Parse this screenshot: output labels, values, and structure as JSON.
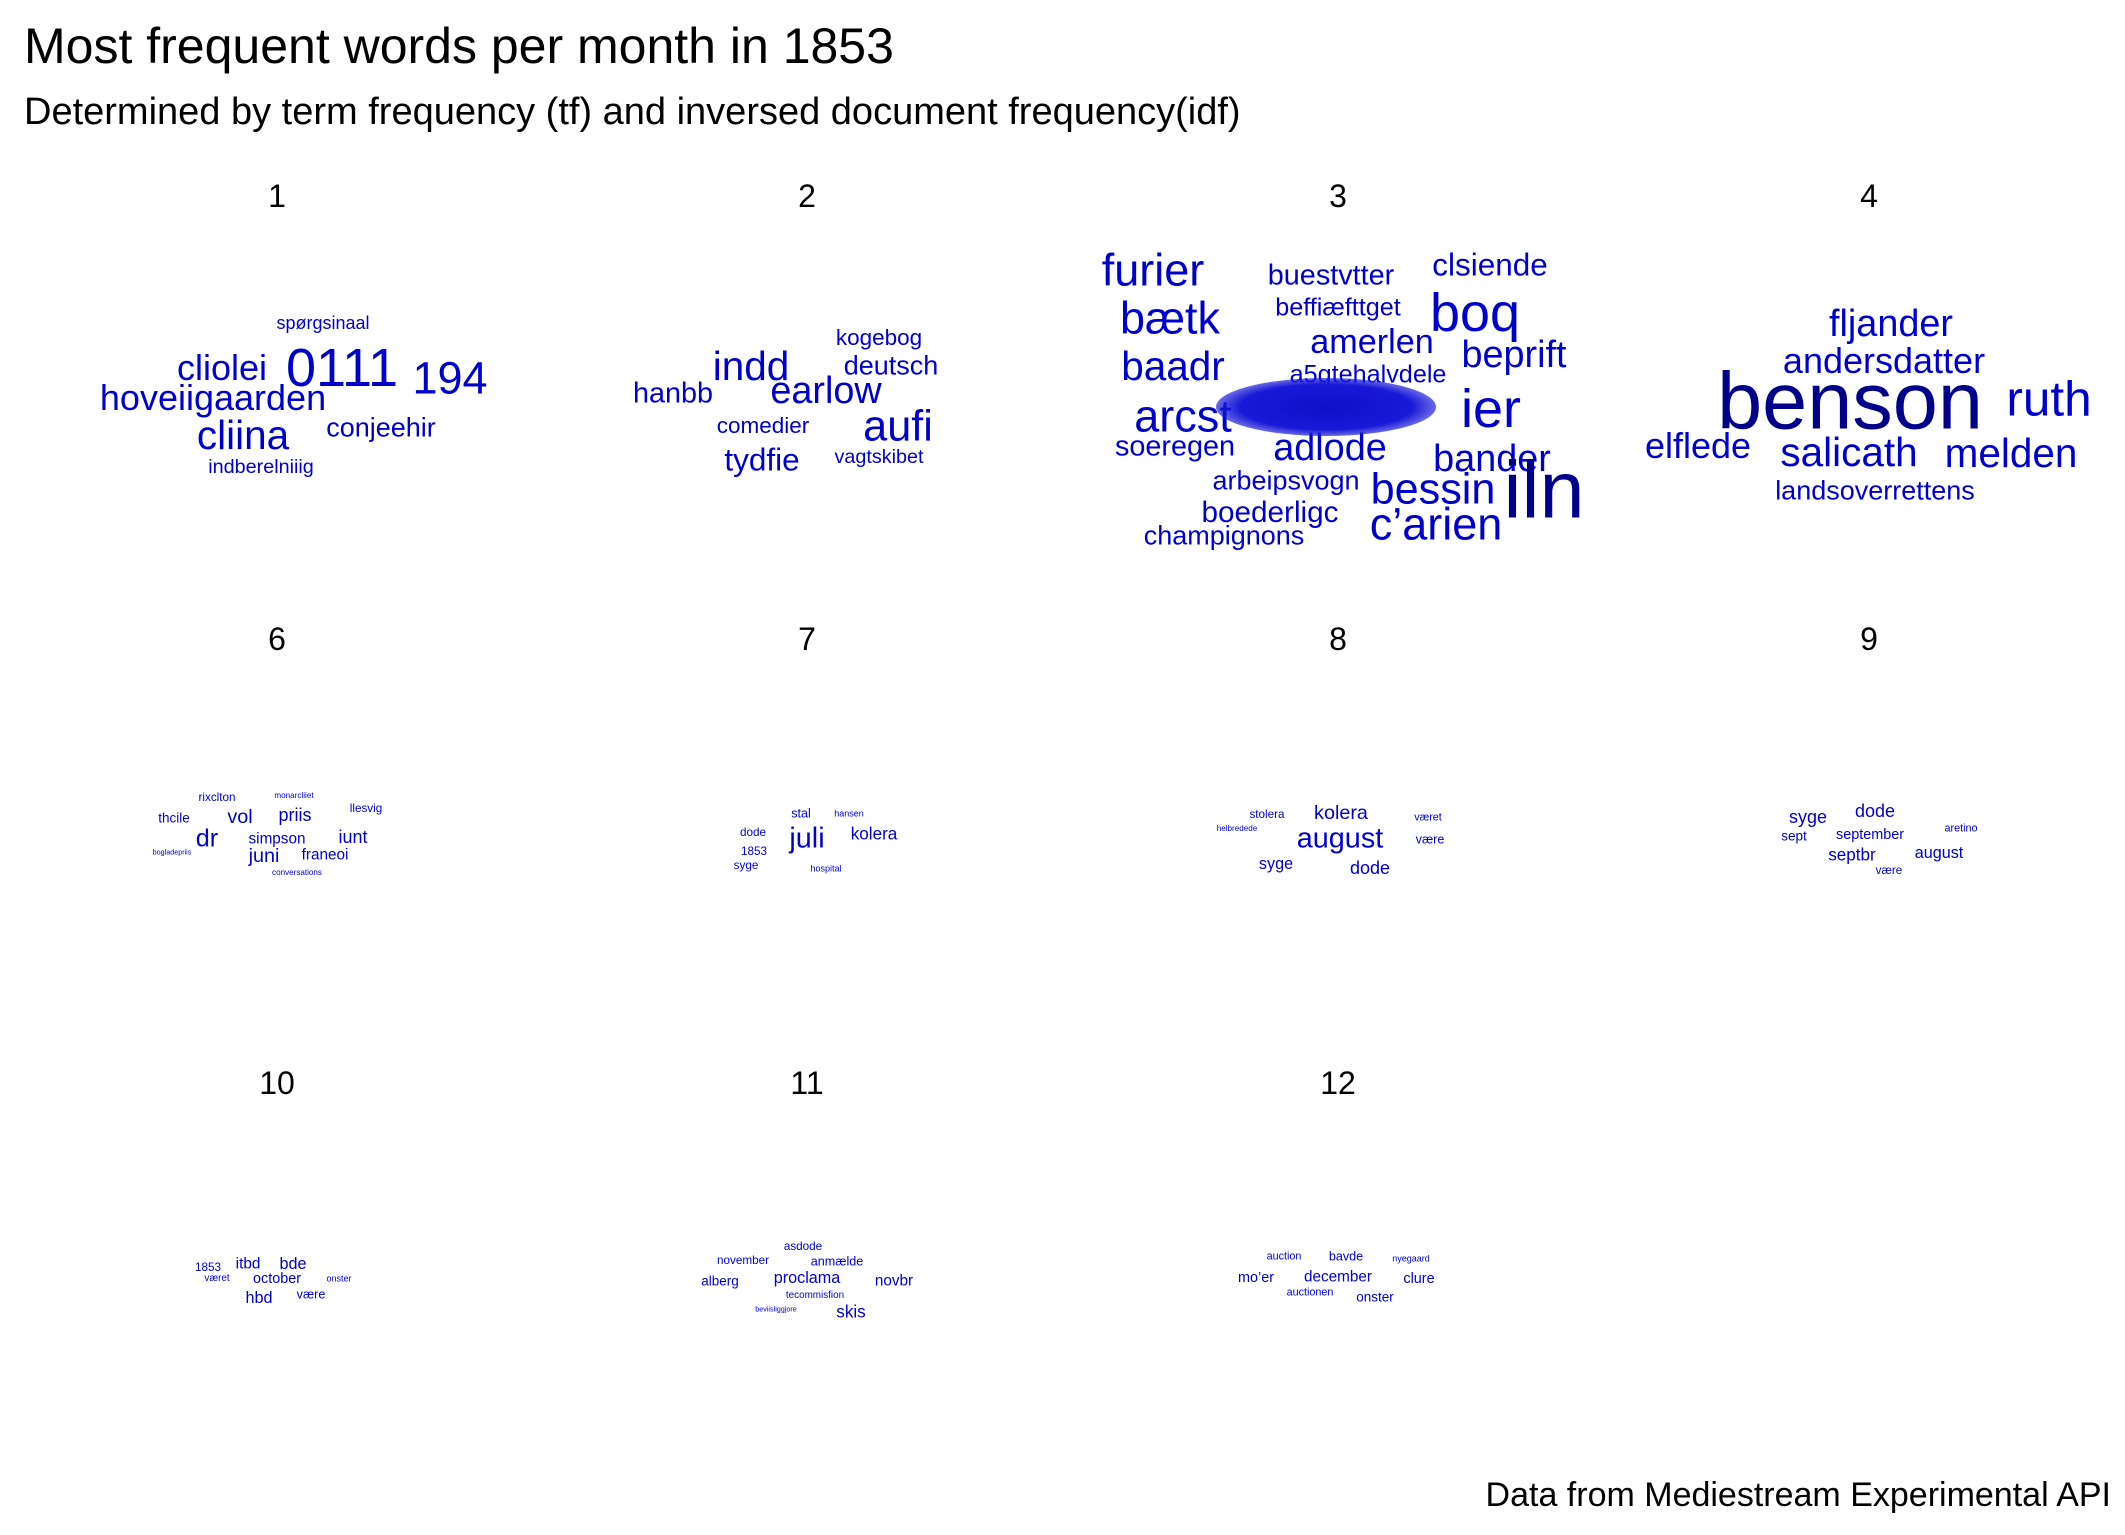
{
  "chart_data": {
    "type": "wordcloud",
    "title": "Most frequent words per month in 1853",
    "subtitle": "Determined by term frequency (tf) and inversed document frequency(idf)",
    "caption": "Data from Mediestream Experimental API",
    "word_color": "#0000cc",
    "word_color_max": "#00008b",
    "facets": [
      {
        "month": "1",
        "words": [
          {
            "word": "spørgsinaal",
            "size": 2
          },
          {
            "word": "cliolei",
            "size": 4
          },
          {
            "word": "0111",
            "size": 6
          },
          {
            "word": "194",
            "size": 5
          },
          {
            "word": "hoveiigaarden",
            "size": 4
          },
          {
            "word": "cliina",
            "size": 4.5
          },
          {
            "word": "conjeehir",
            "size": 3
          },
          {
            "word": "indberelniiig",
            "size": 2.2
          }
        ]
      },
      {
        "month": "2",
        "words": [
          {
            "word": "kogebog",
            "size": 2.5
          },
          {
            "word": "indd",
            "size": 4.5
          },
          {
            "word": "deutsch",
            "size": 3
          },
          {
            "word": "hanbb",
            "size": 3.2
          },
          {
            "word": "earlow",
            "size": 4.2
          },
          {
            "word": "comedier",
            "size": 2.5
          },
          {
            "word": "aufi",
            "size": 4.8
          },
          {
            "word": "tydfie",
            "size": 3.5
          },
          {
            "word": "vagtskibet",
            "size": 2.2
          }
        ]
      },
      {
        "month": "3",
        "words": [
          {
            "word": "furier",
            "size": 5
          },
          {
            "word": "buestvtter",
            "size": 3.2
          },
          {
            "word": "clsiende",
            "size": 3.5
          },
          {
            "word": "boq",
            "size": 6
          },
          {
            "word": "bætk",
            "size": 5
          },
          {
            "word": "beffiæfttget",
            "size": 2.8
          },
          {
            "word": "amerlen",
            "size": 3.8
          },
          {
            "word": "baadr",
            "size": 4.5
          },
          {
            "word": "beprift",
            "size": 4.2
          },
          {
            "word": "a5gtehalvdele",
            "size": 2.8
          },
          {
            "word": "arcst",
            "size": 5
          },
          {
            "word": "ier",
            "size": 6
          },
          {
            "word": "soeregen",
            "size": 3.2
          },
          {
            "word": "adlode",
            "size": 4.2
          },
          {
            "word": "bander",
            "size": 4.2
          },
          {
            "word": "arbeipsvogn",
            "size": 3
          },
          {
            "word": "bessin",
            "size": 4.8
          },
          {
            "word": "boederligc",
            "size": 3.3
          },
          {
            "word": "iln",
            "size": 9
          },
          {
            "word": "c’arien",
            "size": 5
          },
          {
            "word": "champignons",
            "size": 3
          }
        ]
      },
      {
        "month": "4",
        "words": [
          {
            "word": "fljander",
            "size": 4.2
          },
          {
            "word": "andersdatter",
            "size": 4
          },
          {
            "word": "benson",
            "size": 9
          },
          {
            "word": "ruth",
            "size": 5.5
          },
          {
            "word": "elflede",
            "size": 4
          },
          {
            "word": "salicath",
            "size": 4.5
          },
          {
            "word": "melden",
            "size": 4.5
          },
          {
            "word": "landsoverrettens",
            "size": 3
          }
        ]
      },
      {
        "month": "6",
        "words": [
          {
            "word": "rixclton",
            "size": 1.3
          },
          {
            "word": "monarcliiet",
            "size": 0.9
          },
          {
            "word": "llesvig",
            "size": 1.3
          },
          {
            "word": "thcile",
            "size": 1.5
          },
          {
            "word": "vol",
            "size": 2.2
          },
          {
            "word": "priis",
            "size": 2
          },
          {
            "word": "dr",
            "size": 2.8
          },
          {
            "word": "simpson",
            "size": 1.7
          },
          {
            "word": "iunt",
            "size": 2
          },
          {
            "word": "bogladepriis",
            "size": 0.8
          },
          {
            "word": "juni",
            "size": 2.2
          },
          {
            "word": "franeoi",
            "size": 1.7
          },
          {
            "word": "conversations",
            "size": 0.9
          }
        ]
      },
      {
        "month": "7",
        "words": [
          {
            "word": "stal",
            "size": 1.4
          },
          {
            "word": "hansen",
            "size": 1
          },
          {
            "word": "dode",
            "size": 1.3
          },
          {
            "word": "juli",
            "size": 3.2
          },
          {
            "word": "kolera",
            "size": 1.9
          },
          {
            "word": "1853",
            "size": 1.3
          },
          {
            "word": "syge",
            "size": 1.3
          },
          {
            "word": "hospital",
            "size": 1
          }
        ]
      },
      {
        "month": "8",
        "words": [
          {
            "word": "stolera",
            "size": 1.3
          },
          {
            "word": "kolera",
            "size": 2.2
          },
          {
            "word": "været",
            "size": 1.2
          },
          {
            "word": "helbredede",
            "size": 0.9
          },
          {
            "word": "august",
            "size": 3.2
          },
          {
            "word": "være",
            "size": 1.4
          },
          {
            "word": "syge",
            "size": 1.8
          },
          {
            "word": "dode",
            "size": 2
          }
        ]
      },
      {
        "month": "9",
        "words": [
          {
            "word": "dode",
            "size": 2
          },
          {
            "word": "syge",
            "size": 2
          },
          {
            "word": "aretino",
            "size": 1.2
          },
          {
            "word": "sept",
            "size": 1.5
          },
          {
            "word": "september",
            "size": 1.6
          },
          {
            "word": "septbr",
            "size": 1.9
          },
          {
            "word": "august",
            "size": 1.8
          },
          {
            "word": "være",
            "size": 1.3
          }
        ]
      },
      {
        "month": "10",
        "words": [
          {
            "word": "1853",
            "size": 1.3
          },
          {
            "word": "itbd",
            "size": 1.7
          },
          {
            "word": "bde",
            "size": 1.8
          },
          {
            "word": "været",
            "size": 1.1
          },
          {
            "word": "october",
            "size": 1.6
          },
          {
            "word": "onster",
            "size": 1
          },
          {
            "word": "hbd",
            "size": 1.8
          },
          {
            "word": "være",
            "size": 1.4
          }
        ]
      },
      {
        "month": "11",
        "words": [
          {
            "word": "asdode",
            "size": 1.3
          },
          {
            "word": "november",
            "size": 1.3
          },
          {
            "word": "anmælde",
            "size": 1.4
          },
          {
            "word": "alberg",
            "size": 1.5
          },
          {
            "word": "proclama",
            "size": 1.8
          },
          {
            "word": "novbr",
            "size": 1.7
          },
          {
            "word": "tecommisfion",
            "size": 1.1
          },
          {
            "word": "beviisliggjore",
            "size": 0.8
          },
          {
            "word": "skis",
            "size": 1.9
          }
        ]
      },
      {
        "month": "12",
        "words": [
          {
            "word": "auction",
            "size": 1.2
          },
          {
            "word": "bavde",
            "size": 1.4
          },
          {
            "word": "nyegaard",
            "size": 1
          },
          {
            "word": "mo’er",
            "size": 1.6
          },
          {
            "word": "december",
            "size": 1.7
          },
          {
            "word": "clure",
            "size": 1.6
          },
          {
            "word": "auctionen",
            "size": 1.2
          },
          {
            "word": "onster",
            "size": 1.5
          }
        ]
      }
    ]
  }
}
